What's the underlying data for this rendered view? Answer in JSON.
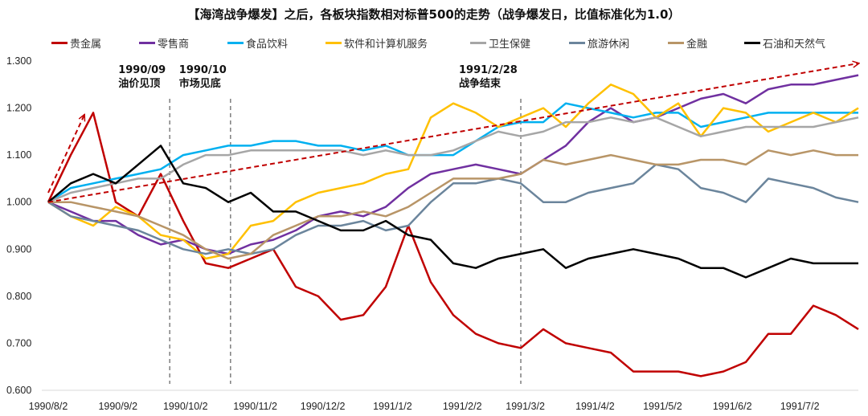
{
  "title": "【海湾战争爆发】之后，各板块指数相对标普500的走势（战争爆发日，比值标准化为1.0）",
  "chart_data": {
    "type": "line",
    "title": "【海湾战争爆发】之后，各板块指数相对标普500的走势（战争爆发日，比值标准化为1.0）",
    "xlabel": "",
    "ylabel": "",
    "xlim": [
      "1990/8/2",
      "1991/7/28"
    ],
    "ylim": [
      0.6,
      1.3
    ],
    "grid": false,
    "legend": "top",
    "x_tick_labels": [
      "1990/8/2",
      "1990/9/2",
      "1990/10/2",
      "1990/11/2",
      "1990/12/2",
      "1991/1/2",
      "1991/2/2",
      "1991/3/2",
      "1991/4/2",
      "1991/5/2",
      "1991/6/2",
      "1991/7/2"
    ],
    "y_tick_labels": [
      "0.600",
      "0.700",
      "0.800",
      "0.900",
      "1.000",
      "1.100",
      "1.200",
      "1.300"
    ],
    "x": [
      "1990/8/2",
      "1990/8/12",
      "1990/8/22",
      "1990/9/1",
      "1990/9/11",
      "1990/9/21",
      "1990/10/1",
      "1990/10/11",
      "1990/10/21",
      "1990/10/31",
      "1990/11/10",
      "1990/11/20",
      "1990/11/30",
      "1990/12/10",
      "1990/12/20",
      "1990/12/30",
      "1991/1/9",
      "1991/1/19",
      "1991/1/29",
      "1991/2/8",
      "1991/2/18",
      "1991/2/28",
      "1991/3/10",
      "1991/3/20",
      "1991/3/30",
      "1991/4/9",
      "1991/4/19",
      "1991/4/29",
      "1991/5/9",
      "1991/5/19",
      "1991/5/29",
      "1991/6/8",
      "1991/6/18",
      "1991/6/28",
      "1991/7/8",
      "1991/7/18",
      "1991/7/28"
    ],
    "series": [
      {
        "name": "贵金属",
        "color": "#C00000",
        "values": [
          1.0,
          1.1,
          1.19,
          1.0,
          0.97,
          1.06,
          0.96,
          0.87,
          0.86,
          0.88,
          0.9,
          0.82,
          0.8,
          0.75,
          0.76,
          0.82,
          0.95,
          0.83,
          0.76,
          0.72,
          0.7,
          0.69,
          0.73,
          0.7,
          0.69,
          0.68,
          0.64,
          0.64,
          0.64,
          0.63,
          0.64,
          0.66,
          0.72,
          0.72,
          0.78,
          0.76,
          0.73
        ]
      },
      {
        "name": "零售商",
        "color": "#7030A0",
        "values": [
          1.0,
          0.98,
          0.96,
          0.96,
          0.93,
          0.91,
          0.92,
          0.9,
          0.89,
          0.91,
          0.92,
          0.94,
          0.97,
          0.98,
          0.97,
          0.99,
          1.03,
          1.06,
          1.07,
          1.08,
          1.07,
          1.06,
          1.09,
          1.12,
          1.17,
          1.2,
          1.17,
          1.18,
          1.2,
          1.22,
          1.23,
          1.21,
          1.24,
          1.25,
          1.25,
          1.26,
          1.27
        ]
      },
      {
        "name": "食品饮料",
        "color": "#00B0F0",
        "values": [
          1.0,
          1.03,
          1.04,
          1.05,
          1.06,
          1.07,
          1.1,
          1.11,
          1.12,
          1.12,
          1.13,
          1.13,
          1.12,
          1.12,
          1.11,
          1.12,
          1.1,
          1.1,
          1.1,
          1.13,
          1.16,
          1.17,
          1.17,
          1.21,
          1.2,
          1.19,
          1.18,
          1.19,
          1.19,
          1.16,
          1.17,
          1.18,
          1.19,
          1.19,
          1.19,
          1.19,
          1.19
        ]
      },
      {
        "name": "软件和计算机服务",
        "color": "#FFC000",
        "values": [
          1.0,
          0.97,
          0.95,
          0.99,
          0.97,
          0.93,
          0.92,
          0.88,
          0.89,
          0.95,
          0.96,
          1.0,
          1.02,
          1.03,
          1.04,
          1.06,
          1.07,
          1.18,
          1.21,
          1.19,
          1.16,
          1.18,
          1.2,
          1.16,
          1.21,
          1.25,
          1.23,
          1.18,
          1.21,
          1.14,
          1.2,
          1.19,
          1.15,
          1.17,
          1.19,
          1.17,
          1.2
        ]
      },
      {
        "name": "卫生保健",
        "color": "#A6A6A6",
        "values": [
          1.0,
          1.02,
          1.03,
          1.04,
          1.05,
          1.05,
          1.08,
          1.1,
          1.1,
          1.11,
          1.11,
          1.11,
          1.11,
          1.11,
          1.1,
          1.11,
          1.1,
          1.1,
          1.11,
          1.13,
          1.15,
          1.14,
          1.15,
          1.17,
          1.17,
          1.18,
          1.17,
          1.18,
          1.16,
          1.14,
          1.15,
          1.16,
          1.16,
          1.16,
          1.16,
          1.17,
          1.18
        ]
      },
      {
        "name": "旅游休闲",
        "color": "#6B859C",
        "values": [
          1.0,
          0.97,
          0.96,
          0.95,
          0.94,
          0.92,
          0.9,
          0.89,
          0.9,
          0.89,
          0.9,
          0.93,
          0.95,
          0.95,
          0.96,
          0.94,
          0.95,
          1.0,
          1.04,
          1.04,
          1.05,
          1.04,
          1.0,
          1.0,
          1.02,
          1.03,
          1.04,
          1.08,
          1.07,
          1.03,
          1.02,
          1.0,
          1.05,
          1.04,
          1.03,
          1.01,
          1.0
        ]
      },
      {
        "name": "金融",
        "color": "#B89567",
        "values": [
          1.0,
          1.0,
          0.99,
          0.98,
          0.97,
          0.95,
          0.93,
          0.9,
          0.88,
          0.89,
          0.93,
          0.95,
          0.97,
          0.97,
          0.98,
          0.97,
          0.99,
          1.02,
          1.05,
          1.05,
          1.05,
          1.06,
          1.09,
          1.08,
          1.09,
          1.1,
          1.09,
          1.08,
          1.08,
          1.09,
          1.09,
          1.08,
          1.11,
          1.1,
          1.11,
          1.1,
          1.1
        ]
      },
      {
        "name": "石油和天然气",
        "color": "#000000",
        "values": [
          1.0,
          1.04,
          1.06,
          1.04,
          1.08,
          1.12,
          1.04,
          1.03,
          1.0,
          1.02,
          0.98,
          0.98,
          0.96,
          0.94,
          0.94,
          0.96,
          0.93,
          0.92,
          0.87,
          0.86,
          0.88,
          0.89,
          0.9,
          0.86,
          0.88,
          0.89,
          0.9,
          0.89,
          0.88,
          0.86,
          0.86,
          0.84,
          0.86,
          0.88,
          0.87,
          0.87,
          0.87
        ]
      }
    ],
    "annotations": [
      {
        "label_date": "1990/09",
        "label_text": "油价见顶",
        "line_x": "1990/9/25"
      },
      {
        "label_date": "1990/10",
        "label_text": "市场见底",
        "line_x": "1990/10/22"
      },
      {
        "label_date": "1991/2/28",
        "label_text": "战争结束",
        "line_x": "1991/2/28"
      }
    ],
    "trend_arrows": [
      {
        "from": [
          "1990/8/2",
          1.02
        ],
        "to": [
          "1990/8/18",
          1.185
        ],
        "color": "#C00000"
      },
      {
        "from": [
          "1990/8/2",
          1.0
        ],
        "to": [
          "1991/7/28",
          1.295
        ],
        "color": "#C00000"
      }
    ]
  }
}
